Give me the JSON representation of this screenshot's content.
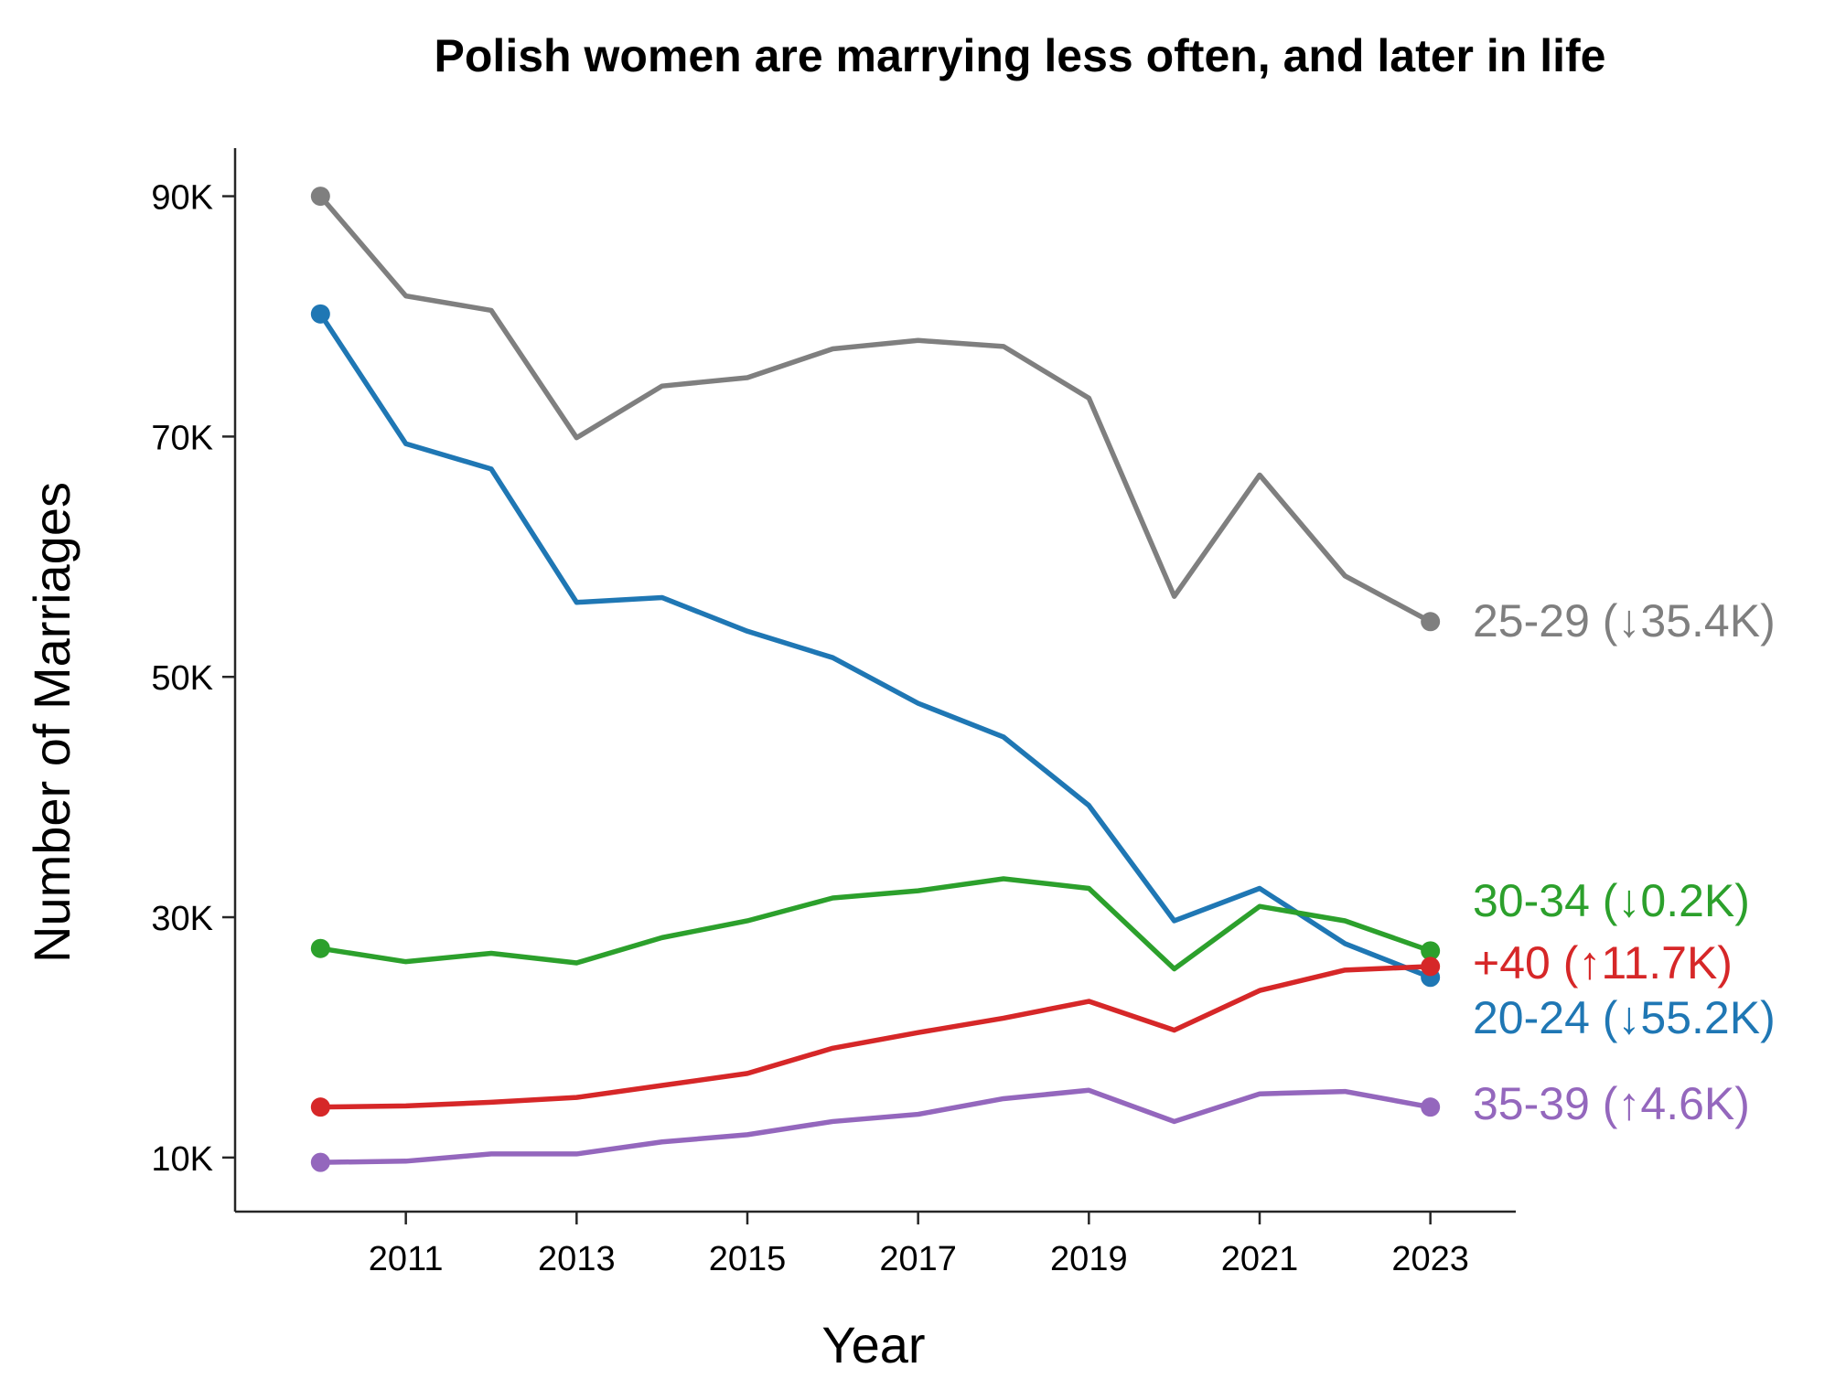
{
  "chart_data": {
    "type": "line",
    "title": "Polish women are marrying less often, and later in life",
    "xlabel": "Year",
    "ylabel": "Number of Marriages",
    "x": [
      2010,
      2011,
      2012,
      2013,
      2014,
      2015,
      2016,
      2017,
      2018,
      2019,
      2020,
      2021,
      2022,
      2023
    ],
    "xlim": [
      2009,
      2024
    ],
    "ylim": [
      5500,
      94000
    ],
    "x_ticks": [
      2011,
      2013,
      2015,
      2017,
      2019,
      2021,
      2023
    ],
    "x_tick_labels": [
      "2011",
      "2013",
      "2015",
      "2017",
      "2019",
      "2021",
      "2023"
    ],
    "y_ticks": [
      10000,
      30000,
      50000,
      70000,
      90000
    ],
    "y_tick_labels": [
      "10K",
      "30K",
      "50K",
      "70K",
      "90K"
    ],
    "grid": false,
    "legend": "none",
    "series": [
      {
        "name": "25-29",
        "end_label": "25-29 (↓35.4K)",
        "color": "#7f7f7f",
        "values": [
          90000,
          81700,
          80500,
          69900,
          74200,
          74900,
          77300,
          78000,
          77500,
          73200,
          56700,
          66800,
          58400,
          54600
        ]
      },
      {
        "name": "20-24",
        "end_label": "20-24 (↓55.2K)",
        "color": "#1f77b4",
        "values": [
          80200,
          69400,
          67300,
          56200,
          56600,
          53800,
          51600,
          47800,
          45000,
          39300,
          29700,
          32400,
          27800,
          25000
        ]
      },
      {
        "name": "30-34",
        "end_label": "30-34 (↓0.2K)",
        "color": "#2ca02c",
        "values": [
          27400,
          26300,
          27000,
          26200,
          28300,
          29700,
          31600,
          32200,
          33200,
          32400,
          25700,
          30900,
          29700,
          27200
        ]
      },
      {
        "name": "+40",
        "end_label": "+40 (↑11.7K)",
        "color": "#d62728",
        "values": [
          14200,
          14300,
          14600,
          15000,
          16000,
          17000,
          19100,
          20400,
          21600,
          23000,
          20600,
          23900,
          25600,
          25900
        ]
      },
      {
        "name": "35-39",
        "end_label": "35-39 (↑4.6K)",
        "color": "#9467bd",
        "values": [
          9600,
          9700,
          10300,
          10300,
          11300,
          11900,
          13000,
          13600,
          14900,
          15600,
          13000,
          15300,
          15500,
          14200
        ]
      }
    ]
  }
}
